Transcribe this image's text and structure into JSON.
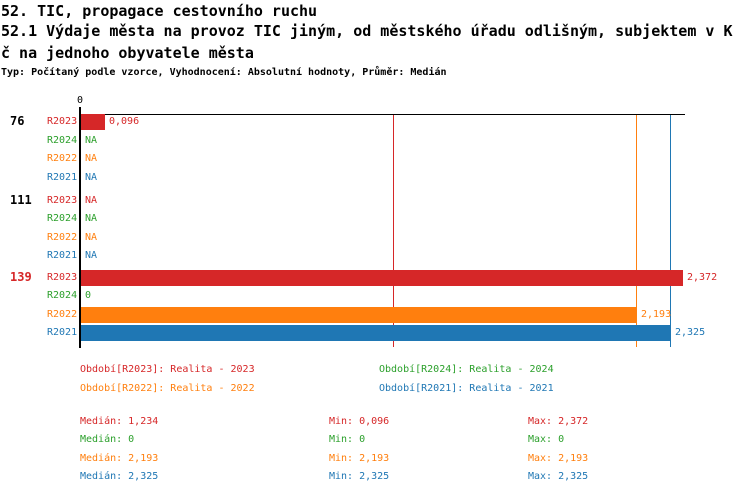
{
  "header": {
    "title": "52. TIC, propagace cestovního ruchu",
    "subtitle_line1": "52.1 Výdaje města na provoz TIC jiným, od městského úřadu odlišným, subjektem v K",
    "subtitle_line2": "č na jednoho obyvatele města",
    "meta": "Typ: Počítaný podle vzorce, Vyhodnocení: Absolutní hodnoty, Průměr: Medián"
  },
  "chart_data": {
    "type": "bar",
    "orientation": "horizontal",
    "x_axis": {
      "zero_label": "0",
      "min": 0,
      "max": 2.385,
      "grid": false
    },
    "series_colors": {
      "R2023": "#d62728",
      "R2024": "#2ca02c",
      "R2022": "#ff7f0e",
      "R2021": "#1f77b4"
    },
    "groups": [
      {
        "label": "76",
        "highlighted": false,
        "rows": [
          {
            "series": "R2023",
            "value": 0.096,
            "display": "0,096"
          },
          {
            "series": "R2024",
            "value": null,
            "display": "NA"
          },
          {
            "series": "R2022",
            "value": null,
            "display": "NA"
          },
          {
            "series": "R2021",
            "value": null,
            "display": "NA"
          }
        ]
      },
      {
        "label": "111",
        "highlighted": false,
        "rows": [
          {
            "series": "R2023",
            "value": null,
            "display": "NA"
          },
          {
            "series": "R2024",
            "value": null,
            "display": "NA"
          },
          {
            "series": "R2022",
            "value": null,
            "display": "NA"
          },
          {
            "series": "R2021",
            "value": null,
            "display": "NA"
          }
        ]
      },
      {
        "label": "139",
        "highlighted": true,
        "rows": [
          {
            "series": "R2023",
            "value": 2.372,
            "display": "2,372"
          },
          {
            "series": "R2024",
            "value": 0,
            "display": "0"
          },
          {
            "series": "R2022",
            "value": 2.193,
            "display": "2,193"
          },
          {
            "series": "R2021",
            "value": 2.325,
            "display": "2,325"
          }
        ]
      }
    ],
    "median_lines": [
      {
        "series": "R2023",
        "value": 1.234
      },
      {
        "series": "R2022",
        "value": 2.193
      },
      {
        "series": "R2021",
        "value": 2.325
      }
    ],
    "legend": [
      {
        "series": "R2023",
        "label": "Období[R2023]: Realita - 2023"
      },
      {
        "series": "R2024",
        "label": "Období[R2024]: Realita - 2024"
      },
      {
        "series": "R2022",
        "label": "Období[R2022]: Realita - 2022"
      },
      {
        "series": "R2021",
        "label": "Období[R2021]: Realita - 2021"
      }
    ],
    "stats": [
      {
        "series": "R2023",
        "median": "Medián: 1,234",
        "min": "Min: 0,096",
        "max": "Max: 2,372"
      },
      {
        "series": "R2024",
        "median": "Medián: 0",
        "min": "Min: 0",
        "max": "Max: 0"
      },
      {
        "series": "R2022",
        "median": "Medián: 2,193",
        "min": "Min: 2,193",
        "max": "Max: 2,193"
      },
      {
        "series": "R2021",
        "median": "Medián: 2,325",
        "min": "Min: 2,325",
        "max": "Max: 2,325"
      }
    ]
  }
}
